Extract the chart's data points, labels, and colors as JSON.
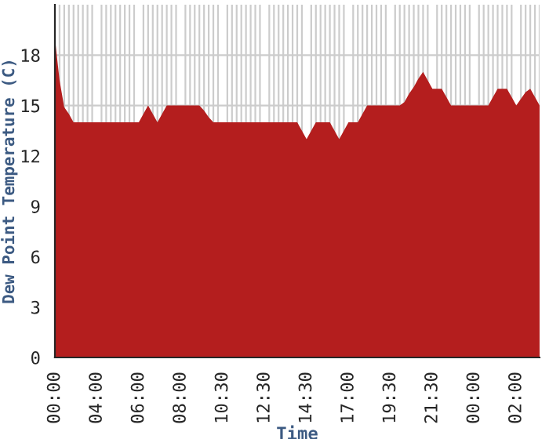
{
  "chart_data": {
    "type": "area",
    "xlabel": "Time",
    "ylabel": "Dew Point Temperature (C)",
    "categories": [
      "00:00",
      null,
      null,
      null,
      null,
      null,
      null,
      null,
      null,
      "04:00",
      null,
      null,
      null,
      null,
      null,
      null,
      null,
      null,
      "06:00",
      null,
      null,
      null,
      null,
      null,
      null,
      null,
      null,
      "08:00",
      null,
      null,
      null,
      null,
      null,
      null,
      null,
      null,
      "10:30",
      null,
      null,
      null,
      null,
      null,
      null,
      null,
      null,
      "12:30",
      null,
      null,
      null,
      null,
      null,
      null,
      null,
      null,
      "14:30",
      null,
      null,
      null,
      null,
      null,
      null,
      null,
      null,
      "17:00",
      null,
      null,
      null,
      null,
      null,
      null,
      null,
      null,
      "19:30",
      null,
      null,
      null,
      null,
      null,
      null,
      null,
      null,
      "21:30",
      null,
      null,
      null,
      null,
      null,
      null,
      null,
      null,
      "00:00",
      null,
      null,
      null,
      null,
      null,
      null,
      null,
      null,
      "02:00",
      null,
      null,
      null,
      null,
      null
    ],
    "series": [
      {
        "color": "#b41e1e",
        "values": [
          19,
          16.5,
          14.9,
          14.5,
          14,
          14,
          14,
          14,
          14,
          14,
          14,
          14,
          14,
          14,
          14,
          14,
          14,
          14,
          14,
          14.5,
          15,
          14.5,
          14,
          14.5,
          15,
          15,
          15,
          15,
          15,
          15,
          15,
          15,
          14.7,
          14.3,
          14,
          14,
          14,
          14,
          14,
          14,
          14,
          14,
          14,
          14,
          14,
          14,
          14,
          14,
          14,
          14,
          14,
          14,
          14,
          13.5,
          13,
          13.5,
          14,
          14,
          14,
          14,
          13.5,
          13,
          13.5,
          14,
          14,
          14,
          14.5,
          15,
          15,
          15,
          15,
          15,
          15,
          15,
          15,
          15.2,
          15.7,
          16.1,
          16.6,
          17,
          16.5,
          16,
          16,
          16,
          15.5,
          15,
          15,
          15,
          15,
          15,
          15,
          15,
          15,
          15,
          15.5,
          16,
          16,
          16,
          15.5,
          15,
          15.4,
          15.8,
          16,
          15.5,
          15
        ]
      }
    ],
    "ylim": [
      0,
      21
    ],
    "yticks": [
      0,
      3,
      6,
      9,
      12,
      15,
      18
    ],
    "grid": true
  }
}
